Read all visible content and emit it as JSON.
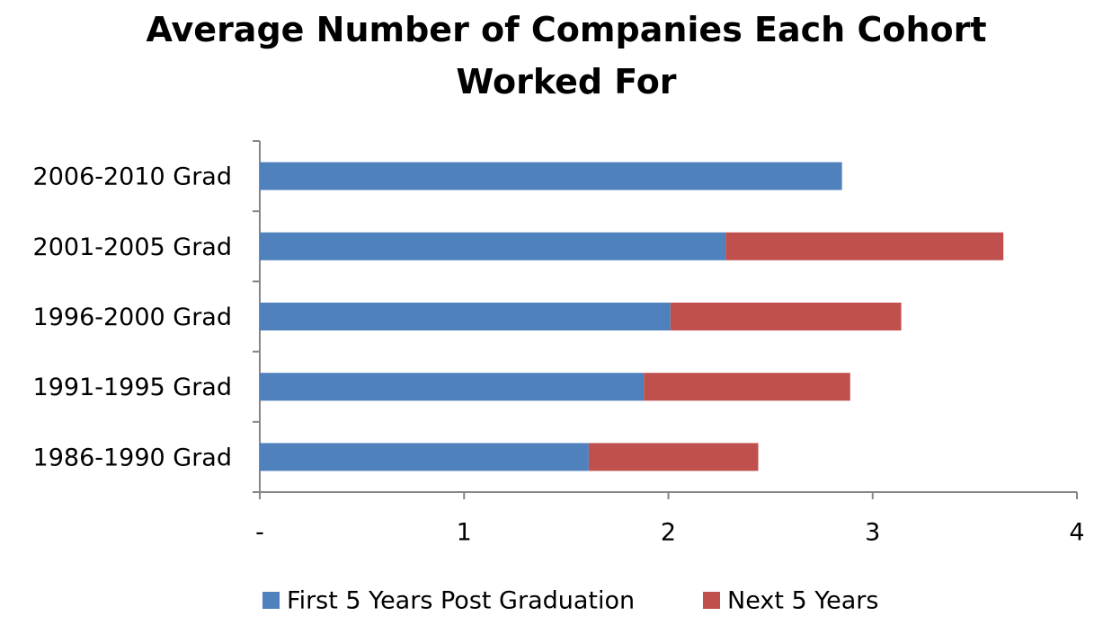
{
  "chart_data": {
    "type": "stacked-barh",
    "title": "Average Number of Companies Each Cohort Worked For",
    "categories": [
      "2006-2010 Grad",
      "2001-2005 Grad",
      "1996-2000 Grad",
      "1991-1995 Grad",
      "1986-1990 Grad"
    ],
    "series": [
      {
        "name": "First 5 Years Post Graduation",
        "color": "#4f81bd",
        "values": [
          2.85,
          2.28,
          2.01,
          1.88,
          1.61
        ]
      },
      {
        "name": "Next 5 Years",
        "color": "#c0504d",
        "values": [
          null,
          1.36,
          1.13,
          1.01,
          0.83
        ]
      }
    ],
    "xlim": [
      0,
      4
    ],
    "xticks": [
      {
        "value": 0,
        "label": "-"
      },
      1,
      2,
      3,
      4
    ],
    "legend": "bottom"
  }
}
